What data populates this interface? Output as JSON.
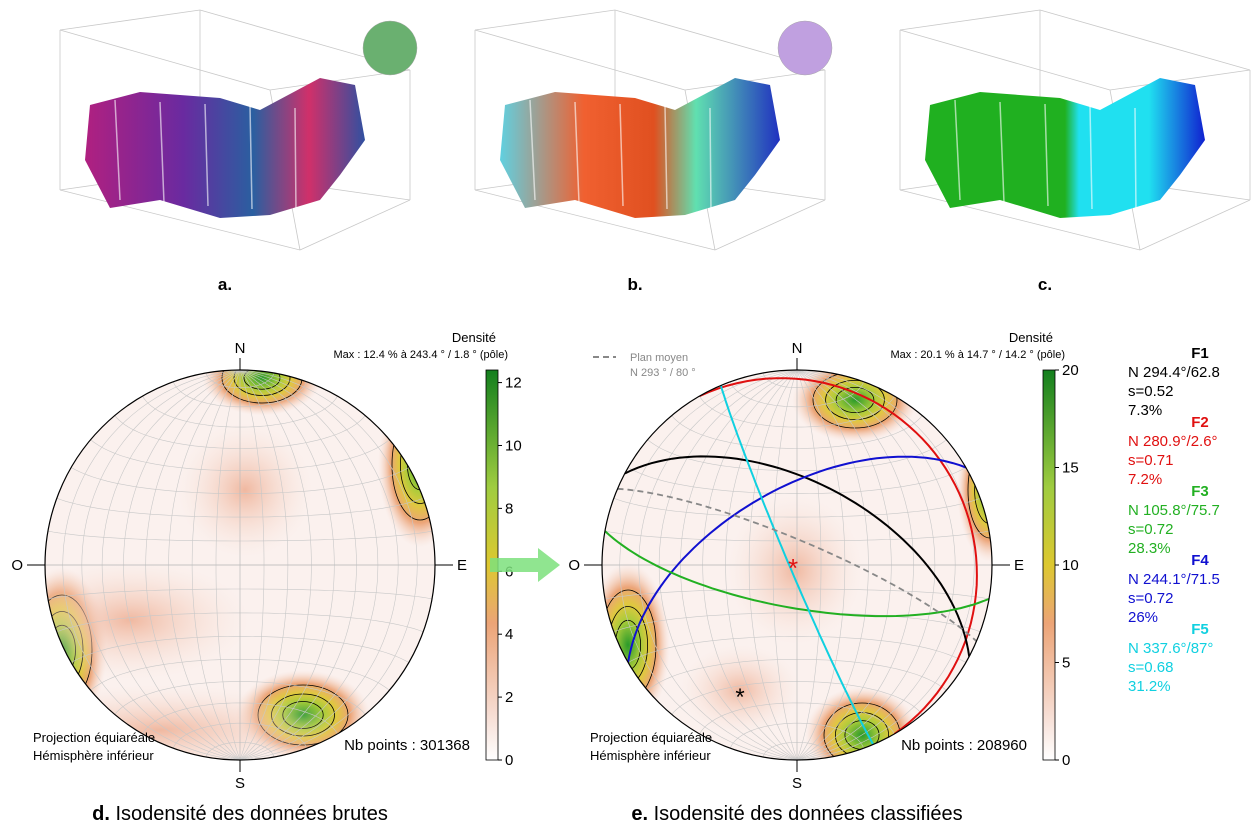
{
  "panels_top": [
    {
      "label": "a."
    },
    {
      "label": "b."
    },
    {
      "label": "c."
    }
  ],
  "stereonets": [
    {
      "label": "d.",
      "caption": "Isodensité des données brutes",
      "north": "N",
      "south": "S",
      "east": "E",
      "west": "O",
      "colorbar": {
        "title": "Densité",
        "lim": [
          0,
          12.4
        ],
        "ticks": [
          0,
          2,
          4,
          6,
          8,
          10,
          12
        ]
      },
      "max_text": "Max :  12.4 % à  243.4 ° / 1.8 ° (pôle)",
      "projection": "Projection équiaréale",
      "hemisphere": "Hémisphère inférieur",
      "nb_points": "Nb points : 301368"
    },
    {
      "label": "e.",
      "caption": "Isodensité des données classifiées",
      "north": "N",
      "south": "S",
      "east": "E",
      "west": "O",
      "colorbar": {
        "title": "Densité",
        "lim": [
          0,
          20
        ],
        "ticks": [
          0,
          5,
          10,
          15,
          20
        ]
      },
      "max_text": "Max :  20.1 % à  14.7 ° / 14.2 ° (pôle)",
      "projection": "Projection équiaréale",
      "hemisphere": "Hémisphère inférieur",
      "nb_points": "Nb points : 208960",
      "mean_plane": {
        "name": "Plan moyen",
        "orientation": "N 293 ° /  80 °"
      }
    }
  ],
  "families": [
    {
      "name": "F1",
      "orientation": "N 294.4°/62.8",
      "s": "s=0.52",
      "percent": "7.3%",
      "color": "#000000"
    },
    {
      "name": "F2",
      "orientation": "N 280.9°/2.6°",
      "s": "s=0.71",
      "percent": "7.2%",
      "color": "#e01010"
    },
    {
      "name": "F3",
      "orientation": "N 105.8°/75.7",
      "s": "s=0.72",
      "percent": "28.3%",
      "color": "#22b022"
    },
    {
      "name": "F4",
      "orientation": "N 244.1°/71.5",
      "s": "s=0.72",
      "percent": "26%",
      "color": "#1010d0"
    },
    {
      "name": "F5",
      "orientation": "N 337.6°/87°",
      "s": "s=0.68",
      "percent": "31.2%",
      "color": "#10d0e0"
    }
  ]
}
